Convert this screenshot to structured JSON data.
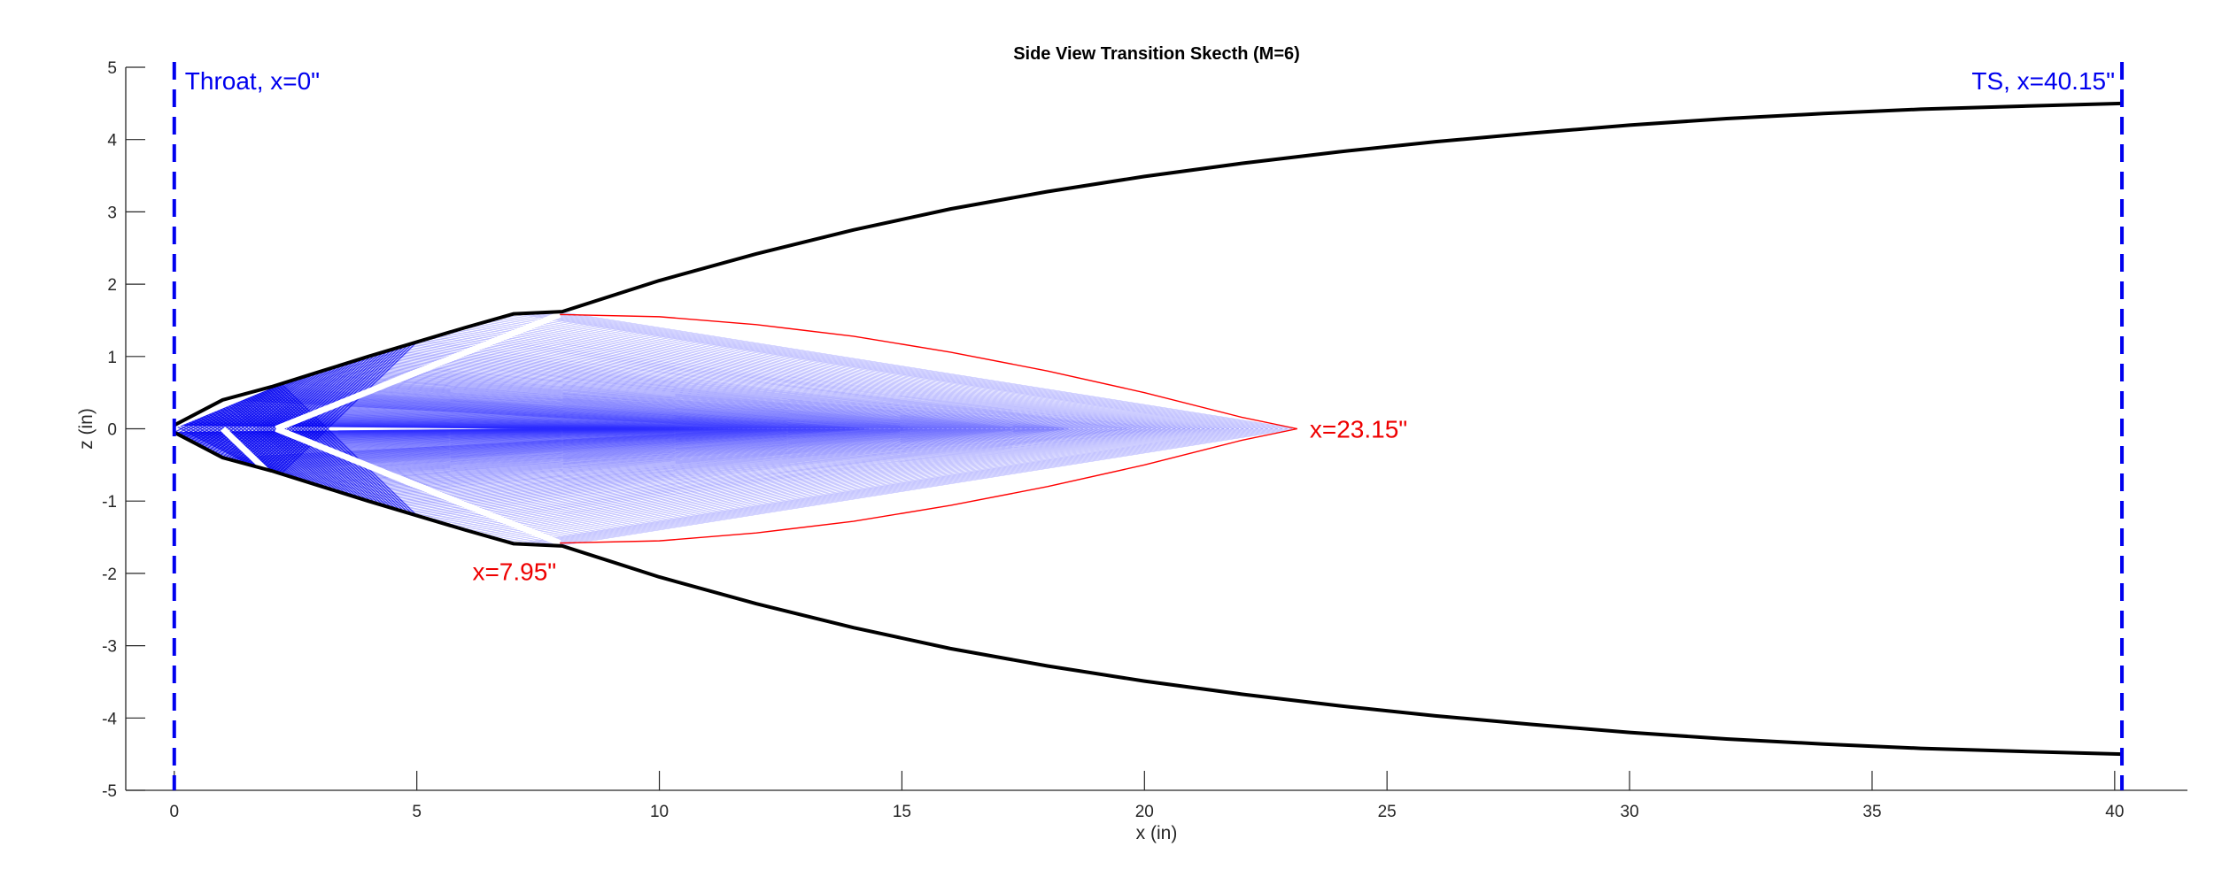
{
  "chart_data": {
    "type": "line",
    "title": "Side View Transition Skecth (M=6)",
    "xlabel": "x (in)",
    "ylabel": "z (in)",
    "xlim": [
      -1,
      41.5
    ],
    "ylim": [
      -5,
      5
    ],
    "xticks": [
      0,
      5,
      10,
      15,
      20,
      25,
      30,
      35,
      40
    ],
    "yticks": [
      -5,
      -4,
      -3,
      -2,
      -1,
      0,
      1,
      2,
      3,
      4,
      5
    ],
    "grid": false,
    "colors": {
      "wall": "#000000",
      "marker_lines": "#0000ee",
      "characteristics": "#2b2bff",
      "kernel": "#ff0000",
      "kernel_text": "#ee0000"
    },
    "series": [
      {
        "type": "line",
        "x": [
          0,
          1,
          2,
          3,
          4,
          5,
          6,
          7,
          8,
          10,
          12,
          14,
          16,
          18,
          20,
          22,
          24,
          26,
          28,
          30,
          32,
          34,
          36,
          38,
          40.15
        ],
        "y": [
          0.05,
          0.4,
          0.58,
          0.79,
          1.0,
          1.2,
          1.4,
          1.59,
          1.62,
          2.05,
          2.42,
          2.75,
          3.04,
          3.28,
          3.49,
          3.67,
          3.83,
          3.97,
          4.09,
          4.2,
          4.29,
          4.36,
          4.42,
          4.46,
          4.5
        ]
      },
      {
        "type": "line",
        "x": [
          0,
          1,
          2,
          3,
          4,
          5,
          6,
          7,
          8,
          10,
          12,
          14,
          16,
          18,
          20,
          22,
          24,
          26,
          28,
          30,
          32,
          34,
          36,
          38,
          40.15
        ],
        "y": [
          -0.05,
          -0.4,
          -0.58,
          -0.79,
          -1.0,
          -1.2,
          -1.4,
          -1.59,
          -1.62,
          -2.05,
          -2.42,
          -2.75,
          -3.04,
          -3.28,
          -3.49,
          -3.67,
          -3.83,
          -3.97,
          -4.09,
          -4.2,
          -4.29,
          -4.36,
          -4.42,
          -4.46,
          -4.5
        ]
      },
      {
        "type": "line",
        "x": [
          7.95,
          10,
          12,
          14,
          16,
          18,
          20,
          22,
          23.15
        ],
        "y": [
          1.58,
          1.55,
          1.44,
          1.28,
          1.06,
          0.8,
          0.5,
          0.16,
          0
        ]
      },
      {
        "type": "line",
        "x": [
          7.95,
          10,
          12,
          14,
          16,
          18,
          20,
          22,
          23.15
        ],
        "y": [
          -1.58,
          -1.55,
          -1.44,
          -1.28,
          -1.06,
          -0.8,
          -0.5,
          -0.16,
          0
        ]
      }
    ],
    "vlines": [
      {
        "x": 0,
        "label": "Throat, x=0\""
      },
      {
        "x": 40.15,
        "label": "TS, x=40.15\""
      }
    ],
    "annotations": [
      {
        "text": "x=23.15\"",
        "x": 23.15,
        "y": 0
      },
      {
        "text": "x=7.95\"",
        "x": 7.95,
        "y": -1.58
      }
    ]
  }
}
